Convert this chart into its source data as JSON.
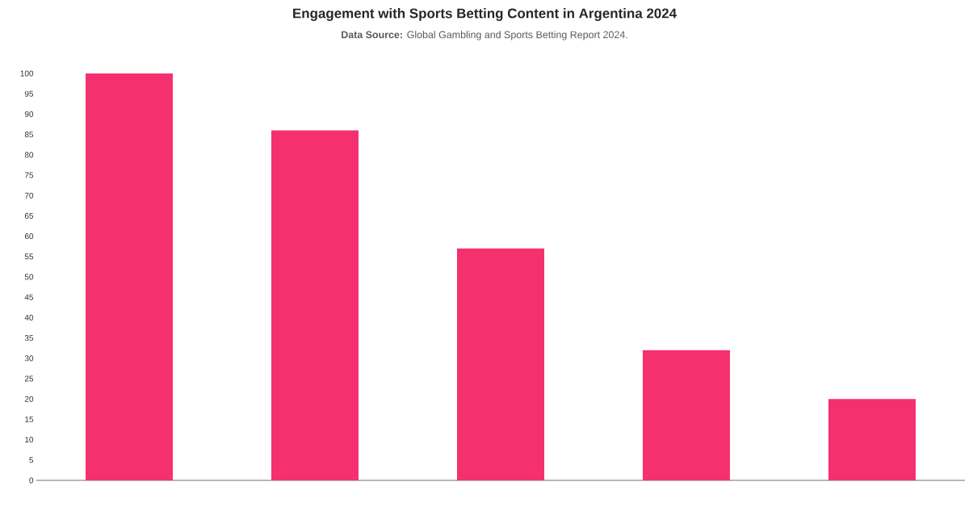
{
  "chart_data": {
    "type": "bar",
    "title": "Engagement with Sports Betting Content in Argentina 2024",
    "subtitle": "**Data Source:** Global Gambling and Sports Betting Report 2024.",
    "categories": [
      null,
      null,
      null,
      null,
      null
    ],
    "values": [
      100,
      86,
      57,
      32,
      20
    ],
    "color": "#f5306f",
    "ylim": [
      0,
      100
    ],
    "yticks": [
      0,
      5,
      10,
      15,
      20,
      25,
      30,
      35,
      40,
      45,
      50,
      55,
      60,
      65,
      70,
      75,
      80,
      85,
      90,
      95,
      100
    ],
    "tick_labels": "y",
    "grid": false
  }
}
